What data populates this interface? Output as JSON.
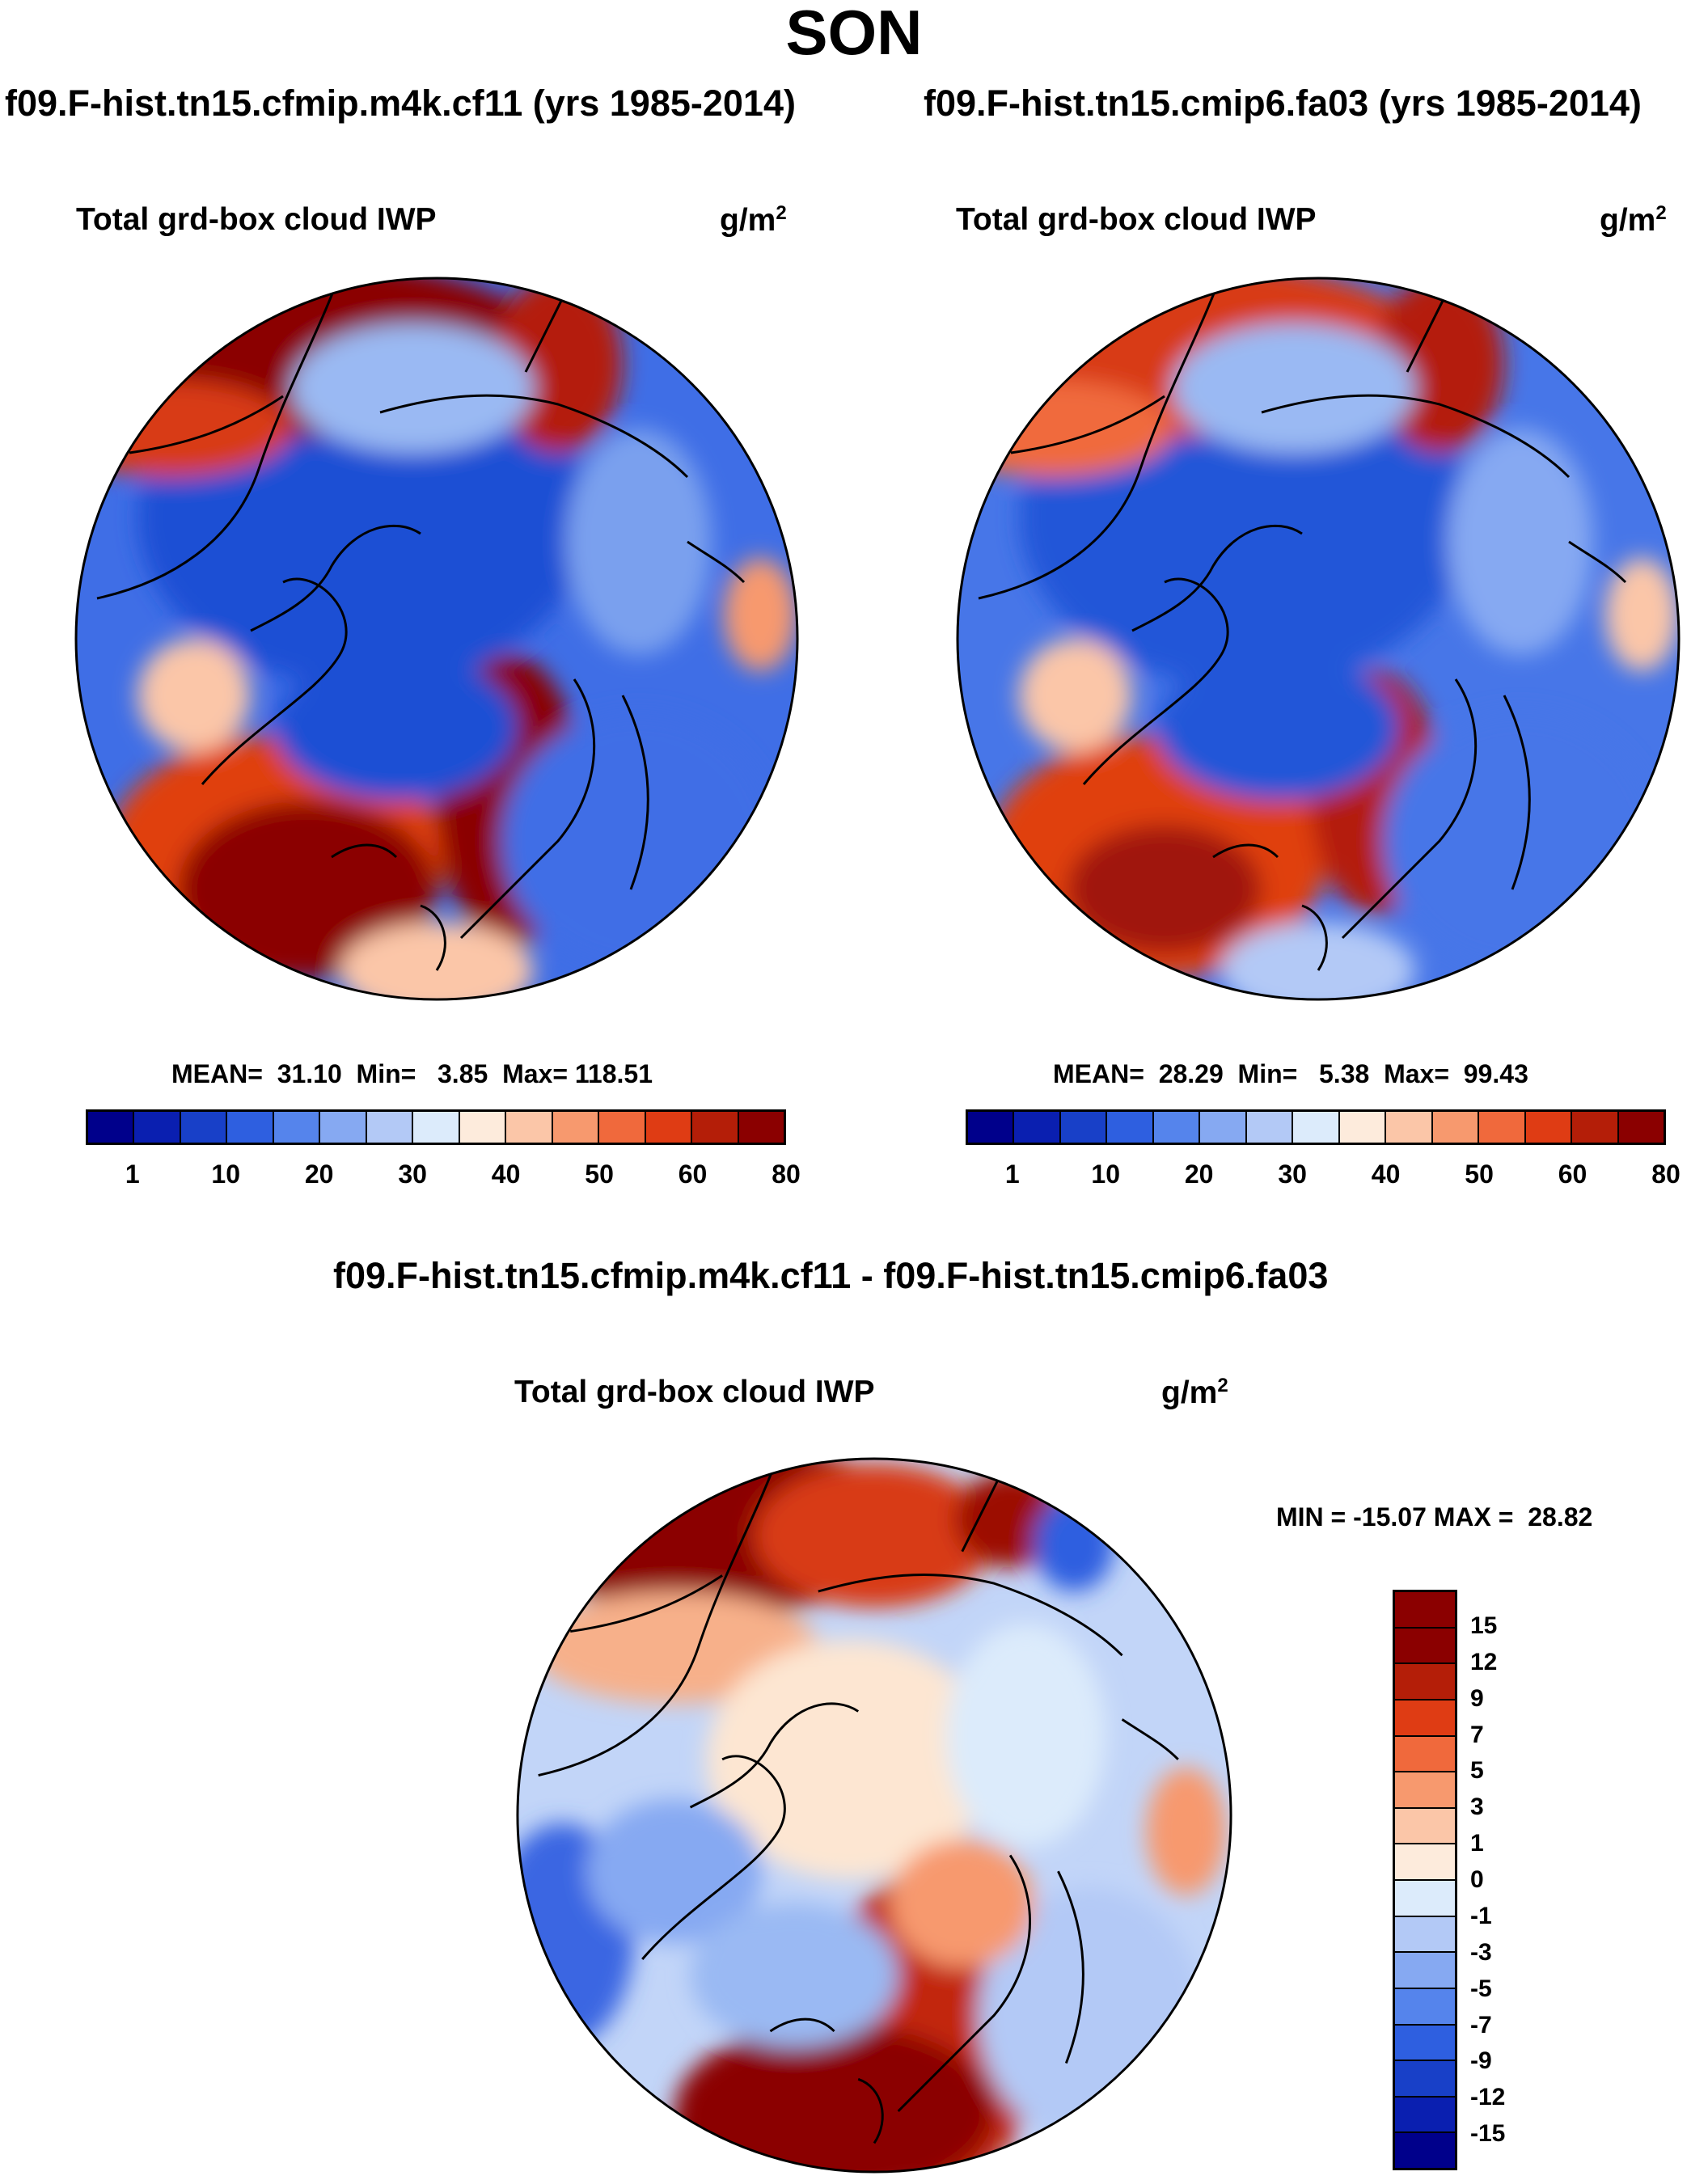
{
  "season": "SON",
  "panel_left": {
    "run_title": "f09.F-hist.tn15.cfmip.m4k.cf11 (yrs 1985-2014)",
    "variable": "Total grd-box cloud IWP",
    "units_base": "g/m",
    "units_exp": "2",
    "stats_text": "MEAN=  31.10  Min=   3.85  Max= 118.51"
  },
  "panel_right": {
    "run_title": "f09.F-hist.tn15.cmip6.fa03 (yrs 1985-2014)",
    "variable": "Total grd-box cloud IWP",
    "units_base": "g/m",
    "units_exp": "2",
    "stats_text": "MEAN=  28.29  Min=   5.38  Max=  99.43"
  },
  "panel_diff": {
    "run_title": "f09.F-hist.tn15.cfmip.m4k.cf11 - f09.F-hist.tn15.cmip6.fa03",
    "variable": "Total grd-box cloud IWP",
    "units_base": "g/m",
    "units_exp": "2",
    "stats_text": "MIN = -15.07 MAX =  28.82"
  },
  "colorbar_abs": {
    "colors": [
      "#00008b",
      "#0a1fb0",
      "#1840c8",
      "#2e5fe0",
      "#5584ec",
      "#86a9f2",
      "#b3c9f6",
      "#dcebfb",
      "#fdebdc",
      "#fbc6a8",
      "#f7996e",
      "#f0693c",
      "#df3c14",
      "#b41e08",
      "#8b0000"
    ],
    "labels": [
      "1",
      "10",
      "20",
      "30",
      "40",
      "50",
      "60",
      "80"
    ]
  },
  "colorbar_diff": {
    "colors": [
      "#8b0000",
      "#b41e08",
      "#df3c14",
      "#f0693c",
      "#f7996e",
      "#fbc6a8",
      "#fdebdc",
      "#dcebfb",
      "#b3c9f6",
      "#86a9f2",
      "#5584ec",
      "#2e5fe0",
      "#1840c8",
      "#0a1fb0",
      "#00008b"
    ],
    "labels": [
      "15",
      "12",
      "9",
      "7",
      "5",
      "3",
      "1",
      "0",
      "-1",
      "-3",
      "-5",
      "-7",
      "-9",
      "-12",
      "-15"
    ]
  }
}
